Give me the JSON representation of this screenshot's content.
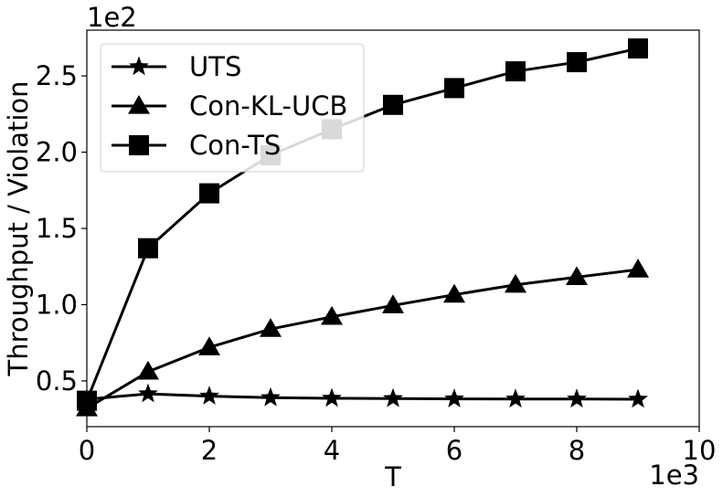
{
  "chart_data": {
    "type": "line",
    "xlabel": "T",
    "ylabel": "Throughput / Violation",
    "x_offset_text": "1e3",
    "y_offset_text": "1e2",
    "xlim": [
      0,
      10
    ],
    "ylim": [
      0.2,
      2.8
    ],
    "x_ticks": [
      0,
      2,
      4,
      6,
      8,
      10
    ],
    "x_tick_labels": [
      "0",
      "2",
      "4",
      "6",
      "8",
      "10"
    ],
    "y_ticks": [
      0.5,
      1.0,
      1.5,
      2.0,
      2.5
    ],
    "y_tick_labels": [
      "0.5",
      "1.0",
      "1.5",
      "2.0",
      "2.5"
    ],
    "grid": false,
    "legend_position": "top-left",
    "series": [
      {
        "name": "UTS",
        "marker": "star",
        "color": "#000000",
        "x": [
          0,
          1,
          2,
          3,
          4,
          5,
          6,
          7,
          8,
          9
        ],
        "values": [
          0.38,
          0.415,
          0.4,
          0.39,
          0.386,
          0.384,
          0.382,
          0.381,
          0.381,
          0.38
        ]
      },
      {
        "name": "Con-KL-UCB",
        "marker": "triangle",
        "color": "#000000",
        "x": [
          0,
          1,
          2,
          3,
          4,
          5,
          6,
          7,
          8,
          9
        ],
        "values": [
          0.32,
          0.56,
          0.72,
          0.84,
          0.92,
          0.995,
          1.065,
          1.13,
          1.18,
          1.23
        ]
      },
      {
        "name": "Con-TS",
        "marker": "square",
        "color": "#000000",
        "x": [
          0,
          1,
          2,
          3,
          4,
          5,
          6,
          7,
          8,
          9
        ],
        "values": [
          0.37,
          1.37,
          1.73,
          1.98,
          2.15,
          2.31,
          2.42,
          2.53,
          2.59,
          2.68
        ]
      }
    ]
  }
}
